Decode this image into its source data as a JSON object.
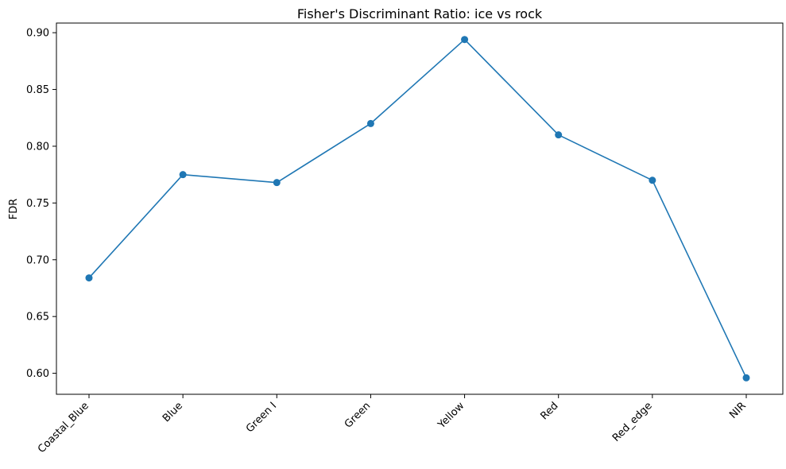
{
  "chart_data": {
    "type": "line",
    "title": "Fisher's Discriminant Ratio: ice vs rock",
    "xlabel": "",
    "ylabel": "FDR",
    "categories": [
      "Coastal_Blue",
      "Blue",
      "Green I",
      "Green",
      "Yellow",
      "Red",
      "Red_edge",
      "NIR"
    ],
    "series": [
      {
        "values": [
          0.684,
          0.775,
          0.768,
          0.82,
          0.894,
          0.81,
          0.77,
          0.596
        ]
      }
    ],
    "y_ticks": [
      0.6,
      0.65,
      0.7,
      0.75,
      0.8,
      0.85,
      0.9
    ],
    "y_tick_labels": [
      "0.60",
      "0.65",
      "0.70",
      "0.75",
      "0.80",
      "0.85",
      "0.90"
    ],
    "ylim": [
      0.5815,
      0.9085
    ],
    "grid": false,
    "legend": "none",
    "colors": {
      "line": "#1f77b4",
      "marker": "#1f77b4",
      "axis": "#000000"
    },
    "x_tick_rotation_deg": -45
  }
}
